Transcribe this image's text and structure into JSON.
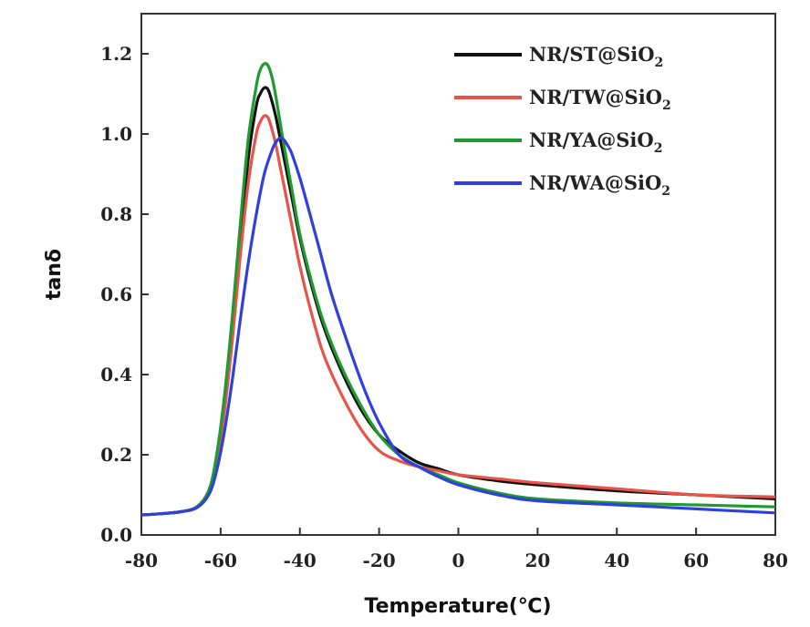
{
  "chart_data": {
    "type": "line",
    "title": "",
    "xlabel": "Temperature(℃)",
    "ylabel": "tanδ",
    "xlim": [
      -80,
      80
    ],
    "ylim": [
      0.0,
      1.3
    ],
    "xticks": [
      -80,
      -60,
      -40,
      -20,
      0,
      20,
      40,
      60,
      80
    ],
    "xtick_labels": [
      "-80",
      "-60",
      "-40",
      "-20",
      "0",
      "20",
      "40",
      "60",
      "80"
    ],
    "yticks": [
      0.0,
      0.2,
      0.4,
      0.6,
      0.8,
      1.0,
      1.2
    ],
    "ytick_labels": [
      "0.0",
      "0.2",
      "0.4",
      "0.6",
      "0.8",
      "1.0",
      "1.2"
    ],
    "grid": false,
    "legend_position": "top-right",
    "series": [
      {
        "name": "NR/ST@SiO",
        "name_sub": "2",
        "color": "#111111",
        "x": [
          -80,
          -75,
          -70,
          -66,
          -63,
          -61,
          -59,
          -57,
          -55,
          -53,
          -51,
          -50,
          -49,
          -48,
          -47,
          -46,
          -45,
          -44,
          -42,
          -40,
          -37,
          -34,
          -30,
          -25,
          -20,
          -15,
          -10,
          -5,
          0,
          10,
          20,
          40,
          60,
          80
        ],
        "y": [
          0.05,
          0.053,
          0.058,
          0.07,
          0.11,
          0.19,
          0.33,
          0.52,
          0.74,
          0.94,
          1.07,
          1.1,
          1.115,
          1.11,
          1.08,
          1.04,
          0.99,
          0.94,
          0.84,
          0.74,
          0.62,
          0.52,
          0.42,
          0.32,
          0.25,
          0.21,
          0.18,
          0.165,
          0.15,
          0.135,
          0.125,
          0.11,
          0.1,
          0.09
        ]
      },
      {
        "name": "NR/TW@SiO",
        "name_sub": "2",
        "color": "#e8534a",
        "x": [
          -80,
          -75,
          -70,
          -66,
          -63,
          -61,
          -59,
          -57,
          -55,
          -53,
          -51,
          -50,
          -49,
          -48,
          -47,
          -46,
          -45,
          -44,
          -42,
          -40,
          -37,
          -34,
          -30,
          -25,
          -20,
          -15,
          -10,
          -5,
          0,
          10,
          20,
          40,
          60,
          80
        ],
        "y": [
          0.05,
          0.053,
          0.058,
          0.07,
          0.11,
          0.18,
          0.31,
          0.49,
          0.7,
          0.88,
          1.0,
          1.03,
          1.045,
          1.04,
          1.01,
          0.97,
          0.92,
          0.87,
          0.77,
          0.67,
          0.55,
          0.45,
          0.36,
          0.27,
          0.21,
          0.185,
          0.17,
          0.16,
          0.15,
          0.14,
          0.13,
          0.115,
          0.1,
          0.095
        ]
      },
      {
        "name": "NR/YA@SiO",
        "name_sub": "2",
        "color": "#1e9a2e",
        "x": [
          -80,
          -75,
          -70,
          -66,
          -63,
          -61,
          -59,
          -57,
          -55,
          -53,
          -51,
          -50,
          -49,
          -48,
          -47,
          -46,
          -45,
          -44,
          -42,
          -40,
          -37,
          -34,
          -30,
          -25,
          -20,
          -15,
          -10,
          -5,
          0,
          10,
          20,
          40,
          60,
          80
        ],
        "y": [
          0.05,
          0.053,
          0.058,
          0.07,
          0.11,
          0.2,
          0.35,
          0.55,
          0.78,
          0.99,
          1.12,
          1.16,
          1.175,
          1.17,
          1.14,
          1.09,
          1.03,
          0.97,
          0.86,
          0.75,
          0.63,
          0.53,
          0.43,
          0.33,
          0.25,
          0.2,
          0.17,
          0.15,
          0.13,
          0.105,
          0.09,
          0.08,
          0.075,
          0.07
        ]
      },
      {
        "name": "NR/WA@SiO",
        "name_sub": "2",
        "color": "#2f3fe0",
        "x": [
          -80,
          -75,
          -70,
          -66,
          -63,
          -61,
          -59,
          -57,
          -55,
          -53,
          -51,
          -49,
          -47,
          -46,
          -45,
          -44,
          -43,
          -42,
          -40,
          -38,
          -35,
          -32,
          -28,
          -24,
          -20,
          -15,
          -10,
          -5,
          0,
          10,
          20,
          40,
          60,
          80
        ],
        "y": [
          0.05,
          0.053,
          0.058,
          0.068,
          0.1,
          0.16,
          0.26,
          0.39,
          0.54,
          0.68,
          0.8,
          0.9,
          0.96,
          0.98,
          0.99,
          0.985,
          0.97,
          0.95,
          0.89,
          0.82,
          0.71,
          0.6,
          0.48,
          0.37,
          0.28,
          0.2,
          0.17,
          0.145,
          0.125,
          0.1,
          0.085,
          0.075,
          0.065,
          0.055
        ]
      }
    ]
  }
}
